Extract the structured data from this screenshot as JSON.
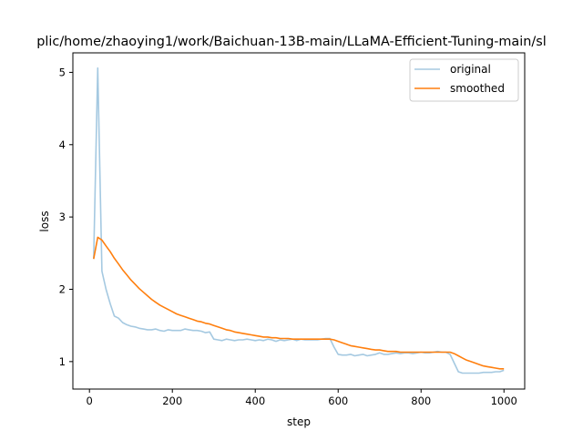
{
  "chart_data": {
    "type": "line",
    "title": "plic/home/zhaoying1/work/Baichuan-13B-main/LLaMA-Efficient-Tuning-main/sl",
    "xlabel": "step",
    "ylabel": "loss",
    "xlim": [
      -40,
      1050
    ],
    "ylim": [
      0.62,
      5.27
    ],
    "xticks": [
      0,
      200,
      400,
      600,
      800,
      1000
    ],
    "yticks": [
      1,
      2,
      3,
      4,
      5
    ],
    "grid": false,
    "legend_placement": "upper-right",
    "x": [
      10,
      20,
      30,
      40,
      50,
      60,
      70,
      80,
      90,
      100,
      110,
      120,
      130,
      140,
      150,
      160,
      170,
      180,
      190,
      200,
      210,
      220,
      230,
      240,
      250,
      260,
      270,
      280,
      290,
      300,
      310,
      320,
      330,
      340,
      350,
      360,
      370,
      380,
      390,
      400,
      410,
      420,
      430,
      440,
      450,
      460,
      470,
      480,
      490,
      500,
      510,
      520,
      530,
      540,
      550,
      560,
      570,
      580,
      590,
      600,
      610,
      620,
      630,
      640,
      650,
      660,
      670,
      680,
      690,
      700,
      710,
      720,
      730,
      740,
      750,
      760,
      770,
      780,
      790,
      800,
      810,
      820,
      830,
      840,
      850,
      860,
      870,
      880,
      890,
      900,
      910,
      920,
      930,
      940,
      950,
      960,
      970,
      980,
      990,
      1000
    ],
    "series": [
      {
        "name": "original",
        "color": "#1f77b4",
        "alpha": 0.4,
        "values": [
          2.42,
          5.06,
          2.25,
          2.0,
          1.8,
          1.63,
          1.6,
          1.54,
          1.51,
          1.49,
          1.48,
          1.46,
          1.45,
          1.44,
          1.44,
          1.45,
          1.43,
          1.42,
          1.44,
          1.43,
          1.43,
          1.43,
          1.45,
          1.44,
          1.43,
          1.43,
          1.42,
          1.4,
          1.41,
          1.31,
          1.3,
          1.29,
          1.31,
          1.3,
          1.29,
          1.3,
          1.3,
          1.31,
          1.3,
          1.29,
          1.3,
          1.29,
          1.31,
          1.3,
          1.28,
          1.3,
          1.29,
          1.3,
          1.31,
          1.29,
          1.31,
          1.3,
          1.3,
          1.3,
          1.3,
          1.31,
          1.32,
          1.32,
          1.2,
          1.1,
          1.09,
          1.09,
          1.1,
          1.08,
          1.09,
          1.1,
          1.08,
          1.09,
          1.1,
          1.12,
          1.1,
          1.1,
          1.11,
          1.12,
          1.11,
          1.12,
          1.12,
          1.11,
          1.12,
          1.13,
          1.12,
          1.12,
          1.13,
          1.14,
          1.13,
          1.13,
          1.1,
          0.98,
          0.86,
          0.84,
          0.84,
          0.84,
          0.84,
          0.84,
          0.85,
          0.85,
          0.85,
          0.86,
          0.86,
          0.88
        ]
      },
      {
        "name": "smoothed",
        "color": "#ff7f0e",
        "alpha": 1,
        "values": [
          2.42,
          2.72,
          2.68,
          2.6,
          2.52,
          2.43,
          2.35,
          2.27,
          2.2,
          2.13,
          2.07,
          2.01,
          1.96,
          1.91,
          1.86,
          1.82,
          1.78,
          1.75,
          1.72,
          1.69,
          1.66,
          1.64,
          1.62,
          1.6,
          1.58,
          1.56,
          1.55,
          1.53,
          1.52,
          1.5,
          1.48,
          1.46,
          1.44,
          1.43,
          1.41,
          1.4,
          1.39,
          1.38,
          1.37,
          1.36,
          1.35,
          1.34,
          1.34,
          1.33,
          1.33,
          1.32,
          1.32,
          1.32,
          1.31,
          1.31,
          1.31,
          1.31,
          1.31,
          1.31,
          1.31,
          1.31,
          1.31,
          1.31,
          1.3,
          1.28,
          1.26,
          1.24,
          1.22,
          1.21,
          1.2,
          1.19,
          1.18,
          1.17,
          1.16,
          1.16,
          1.15,
          1.14,
          1.14,
          1.14,
          1.13,
          1.13,
          1.13,
          1.13,
          1.13,
          1.13,
          1.13,
          1.13,
          1.13,
          1.13,
          1.13,
          1.13,
          1.13,
          1.11,
          1.08,
          1.05,
          1.02,
          1.0,
          0.98,
          0.96,
          0.94,
          0.93,
          0.92,
          0.91,
          0.9,
          0.9
        ]
      }
    ]
  }
}
